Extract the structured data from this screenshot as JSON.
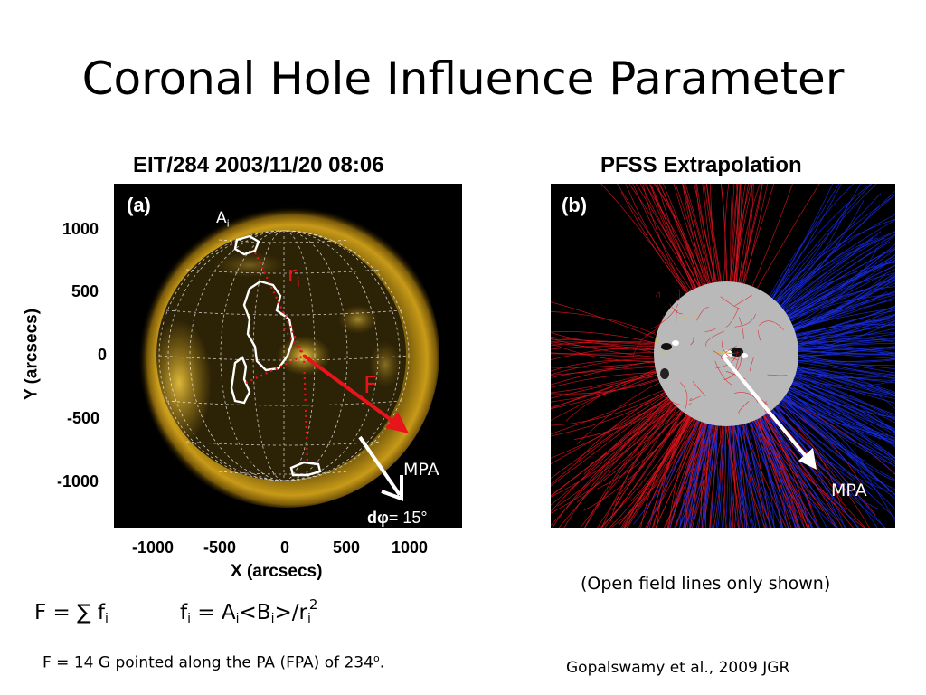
{
  "slide": {
    "title": "Coronal Hole Influence Parameter"
  },
  "figure_a": {
    "heading": "EIT/284 2003/11/20 08:06",
    "panel_label": "(a)",
    "y_ticks": [
      "1000",
      "500",
      "0",
      "-500",
      "-1000"
    ],
    "x_ticks": [
      "-1000",
      "-500",
      "0",
      "500",
      "1000"
    ],
    "x_label": "X (arcsecs)",
    "y_label": "Y (arcsecs)",
    "label_A": "A",
    "label_A_sub": "i",
    "label_r": "r",
    "label_r_sub": "i",
    "label_F": "F",
    "label_MPA": "MPA",
    "dphi_d": "d",
    "dphi_phi": "φ",
    "dphi_value": "= 15°"
  },
  "figure_b": {
    "heading": "PFSS Extrapolation",
    "panel_label": "(b)",
    "label_MPA": "MPA",
    "note": "(Open field lines only shown)"
  },
  "equations": {
    "F_lhs": "F = ∑ f",
    "F_sub": "i",
    "f_lhs": "f",
    "f_sub1": "i",
    "f_mid": " = A",
    "f_sub2": "i",
    "f_mid2": "<B",
    "f_sub3": "i",
    "f_mid3": ">/r",
    "f_sub4": "i",
    "f_sup": "2"
  },
  "result": {
    "text": "F = 14 G pointed along the PA (FPA) of 234",
    "degree": "o",
    "period": "."
  },
  "citation": "Gopalswamy et al., 2009 JGR",
  "colors": {
    "corona": "#d4a514",
    "field_red": "#e0141e",
    "field_blue": "#1a2ee6",
    "arrow_red": "#e8141c"
  }
}
